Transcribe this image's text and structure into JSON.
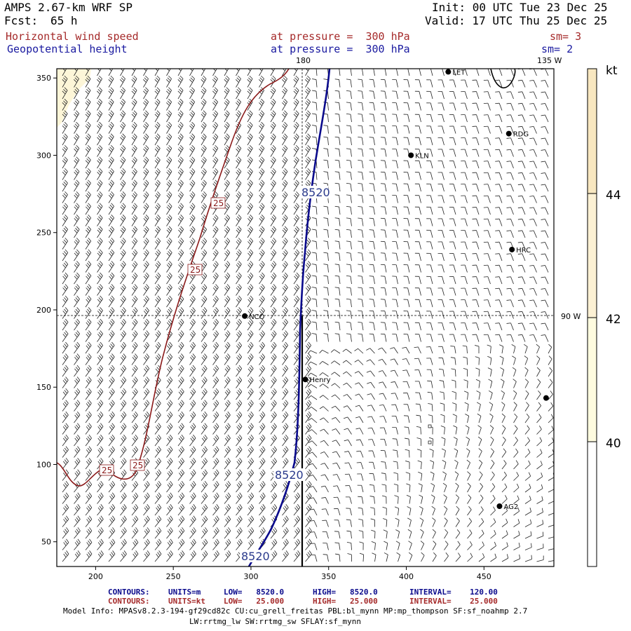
{
  "header": {
    "model_name": "AMPS 2.67-km WRF SP",
    "init": "Init: 00 UTC Tue 23 Dec 25",
    "fcst_label": "Fcst:",
    "fcst_hours": "65 h",
    "valid": "Valid: 17 UTC Thu 25 Dec 25",
    "field1_name": "Horizontal wind speed",
    "field1_level": "at pressure =  300 hPa",
    "field1_sm": "sm= 3",
    "field2_name": "Geopotential height",
    "field2_level": "at pressure =  300 hPa",
    "field2_sm": "sm= 2"
  },
  "map": {
    "x_range": [
      175,
      495
    ],
    "y_range": [
      34,
      356
    ],
    "x_ticks": [
      200,
      250,
      300,
      350,
      400,
      450
    ],
    "y_ticks": [
      50,
      100,
      150,
      200,
      250,
      300,
      350
    ],
    "meridian_labels": {
      "m180": "180",
      "m135w": "135 W",
      "m90w": "90 W"
    },
    "stations": [
      {
        "name": "NCO",
        "x": 296,
        "y": 196
      },
      {
        "name": "Henry",
        "x": 335,
        "y": 155
      },
      {
        "name": "KLN",
        "x": 403,
        "y": 300
      },
      {
        "name": "RDG",
        "x": 466,
        "y": 314
      },
      {
        "name": "HRC",
        "x": 468,
        "y": 239
      },
      {
        "name": "AG2",
        "x": 460,
        "y": 73
      },
      {
        "name": "LET",
        "x": 427,
        "y": 354
      },
      {
        "name": "",
        "x": 490,
        "y": 143
      }
    ],
    "height_contour_label": "8520",
    "wind_contour_label": "25"
  },
  "colorbar": {
    "unit": "kt",
    "levels": [
      40,
      42,
      44
    ],
    "colors": [
      "#ffffff",
      "#fefbdf",
      "#fcf1d4",
      "#f8e7c0"
    ]
  },
  "colors": {
    "height_contour": "#0a0a8c",
    "wind_contour": "#8b1a1a",
    "wind_fill": "#fdf6d8"
  },
  "footer": {
    "contour1_label": "CONTOURS:",
    "contour1_units": "UNITS=m",
    "contour1_low": "LOW=   8520.0",
    "contour1_high": "HIGH=   8520.0",
    "contour1_interval": "INTERVAL=    120.00",
    "contour2_label": "CONTOURS:",
    "contour2_units": "UNITS=kt",
    "contour2_low": "LOW=   25.000",
    "contour2_high": "HIGH=   25.000",
    "contour2_interval": "INTERVAL=    25.000",
    "model_info_1": "Model Info: MPASv8.2.3-194-gf29cd82c CU:cu_grell_freitas PBL:bl_mynn MP:mp_thompson SF:sf_noahmp 2.7",
    "model_info_2": "LW:rrtmg_lw SW:rrtmg_sw SFLAY:sf_mynn"
  }
}
